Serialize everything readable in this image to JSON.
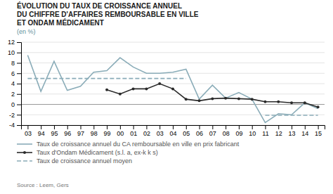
{
  "chart_data": {
    "type": "line",
    "title": [
      "ÉVOLUTION DU TAUX DE CROISSANCE ANNUEL",
      "DU CHIFFRE D'AFFAIRES REMBOURSABLE EN VILLE",
      "ET ONDAM MÉDICAMENT"
    ],
    "subtitle": "(en %)",
    "source": "Source : Leem, Gers",
    "categories": [
      "03",
      "94",
      "95",
      "96",
      "97",
      "98",
      "99",
      "00",
      "01",
      "02",
      "03",
      "04",
      "05",
      "06",
      "07",
      "08",
      "09",
      "10",
      "11",
      "12",
      "13",
      "14",
      "15"
    ],
    "series": [
      {
        "name": "Taux de croissance annuel du CA remboursable en ville en prix fabricant",
        "color": "#8aacb8",
        "line_style": "solid",
        "values": [
          9.5,
          2.5,
          8.3,
          2.7,
          3.5,
          6.2,
          6.5,
          9.0,
          7.2,
          6.0,
          6.0,
          6.2,
          6.8,
          1.0,
          3.7,
          1.2,
          2.3,
          1.0,
          -3.5,
          -1.8,
          -2.0,
          0.3,
          -0.8
        ]
      },
      {
        "name": "Taux d'Ondam Médicament (s.l. a, ex-k k s)",
        "color": "#2a2a2a",
        "line_style": "solid",
        "marker": "circle",
        "values": [
          null,
          null,
          null,
          null,
          null,
          null,
          2.8,
          2.0,
          3.0,
          3.0,
          4.0,
          3.0,
          1.0,
          0.7,
          1.1,
          1.2,
          1.1,
          1.0,
          0.5,
          0.5,
          0.3,
          0.3,
          -0.5
        ]
      },
      {
        "name": "Taux de croissance annuel moyen",
        "color": "#8aacb8",
        "line_style": "dashed",
        "values": [
          5.0,
          5.0,
          5.0,
          5.0,
          5.0,
          5.0,
          5.0,
          5.0,
          5.0,
          5.0,
          5.0,
          5.0,
          5.0,
          null,
          null,
          null,
          null,
          null,
          -2.1,
          -2.1,
          -2.1,
          -2.1,
          -2.1
        ]
      }
    ],
    "ylim": [
      -4,
      12
    ],
    "yticks": [
      -4,
      -2,
      0,
      2,
      4,
      6,
      8,
      10,
      12
    ],
    "grid": true
  }
}
